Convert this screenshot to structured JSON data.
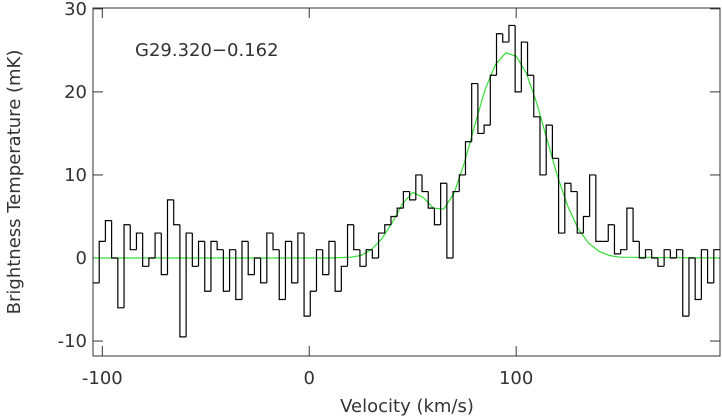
{
  "chart_data": {
    "type": "step",
    "x_label": "Velocity (km/s)",
    "y_label": "Brightness Temperature (mK)",
    "annotation": "G29.320−0.162",
    "xlim": [
      -104.5,
      198.5
    ],
    "ylim": [
      -11.8,
      30.1
    ],
    "xticks": [
      -100,
      0,
      100
    ],
    "yticks": [
      -10,
      0,
      10,
      20,
      30
    ],
    "x": [
      -103,
      -100,
      -97,
      -94,
      -91,
      -88,
      -85,
      -82,
      -79,
      -76,
      -73,
      -70,
      -67,
      -64,
      -61,
      -58,
      -55,
      -52,
      -49,
      -46,
      -43,
      -40,
      -37,
      -34,
      -31,
      -28,
      -25,
      -22,
      -19,
      -16,
      -13,
      -10,
      -7,
      -4,
      -1,
      2,
      5,
      8,
      11,
      14,
      17,
      20,
      23,
      26,
      29,
      32,
      35,
      38,
      41,
      44,
      47,
      50,
      53,
      56,
      59,
      62,
      65,
      68,
      71,
      74,
      77,
      80,
      83,
      86,
      89,
      92,
      95,
      98,
      101,
      104,
      107,
      110,
      113,
      116,
      119,
      122,
      125,
      128,
      131,
      134,
      137,
      140,
      143,
      146,
      149,
      152,
      155,
      158,
      161,
      164,
      167,
      170,
      173,
      176,
      179,
      182,
      185,
      188,
      191,
      194,
      197
    ],
    "series": [
      {
        "type": "step",
        "color": "#000000",
        "values": [
          -3,
          2,
          4.5,
          0,
          -6,
          4,
          1,
          3,
          -1,
          0,
          3,
          -2,
          7,
          4,
          -9.5,
          3,
          -1,
          2,
          -4,
          2,
          1,
          -4,
          1,
          -5,
          2,
          -2,
          0,
          -3,
          3,
          1,
          -5,
          2,
          -3,
          3,
          -7,
          -4,
          1,
          -2,
          2,
          -4,
          -1,
          4,
          1,
          -1,
          1,
          0,
          3,
          4,
          5,
          6,
          8,
          7,
          10,
          8,
          6,
          4,
          9,
          0,
          8,
          10,
          14,
          21,
          15,
          16,
          22,
          27,
          26,
          28,
          20,
          26,
          22,
          17,
          10,
          16,
          12,
          3,
          9,
          8,
          3,
          5,
          10,
          2,
          2,
          4,
          0.5,
          1,
          6,
          2,
          0,
          1,
          0,
          -1,
          1,
          0,
          1,
          -7,
          0,
          -5,
          1,
          -3,
          1
        ]
      },
      {
        "type": "line",
        "color": "#33dd33",
        "x": [
          -104,
          10,
          20,
          25,
          30,
          35,
          40,
          45,
          50,
          55,
          60,
          65,
          70,
          75,
          80,
          85,
          90,
          95,
          100,
          105,
          110,
          115,
          120,
          125,
          130,
          135,
          140,
          145,
          150,
          198
        ],
        "values": [
          0,
          0,
          0.1,
          0.3,
          1,
          2.3,
          4.2,
          6.5,
          7.9,
          7.3,
          6,
          5.9,
          7.8,
          11.5,
          16,
          20.3,
          23.3,
          24.7,
          24.3,
          22.2,
          18.6,
          14.2,
          9.8,
          6.2,
          3.5,
          1.8,
          0.8,
          0.3,
          0.1,
          0
        ]
      }
    ]
  }
}
